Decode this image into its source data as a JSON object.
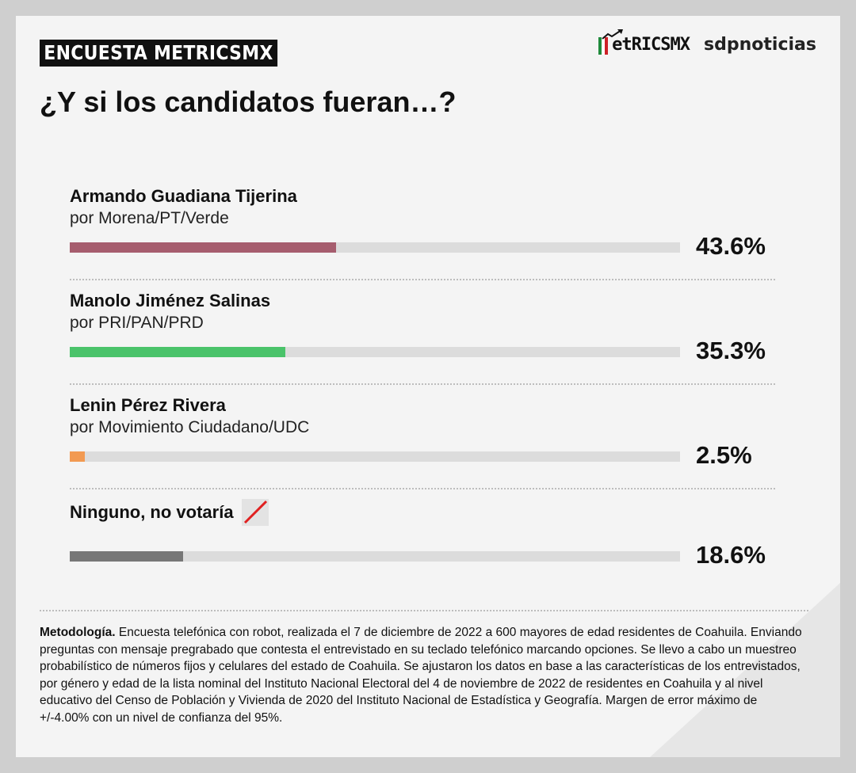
{
  "header": {
    "badge": "ENCUESTA METRICSMX",
    "title": "¿Y si los candidatos fueran…?",
    "logo_metrics": "etRICSMX",
    "logo_sdp": "sdpnoticias"
  },
  "chart_data": {
    "type": "bar",
    "title": "¿Y si los candidatos fueran…?",
    "xlim": [
      0,
      100
    ],
    "rows": [
      {
        "name": "Armando Guadiana Tijerina",
        "party": "por Morena/PT/Verde",
        "value": 43.6,
        "label": "43.6%",
        "color": "#a65d6e"
      },
      {
        "name": "Manolo Jiménez Salinas",
        "party": "por PRI/PAN/PRD",
        "value": 35.3,
        "label": "35.3%",
        "color": "#4ac36a"
      },
      {
        "name": "Lenin Pérez Rivera",
        "party": "por Movimiento Ciudadano/UDC",
        "value": 2.5,
        "label": "2.5%",
        "color": "#f29a52"
      },
      {
        "name": "Ninguno, no votaría",
        "party": "",
        "value": 18.6,
        "label": "18.6%",
        "color": "#777777"
      }
    ]
  },
  "methodology": {
    "label": "Metodología.",
    "text": " Encuesta telefónica con robot, realizada el 7 de diciembre de 2022 a 600 mayores de edad residentes de Coahuila. Enviando preguntas con mensaje pregrabado que contesta el entrevistado en su teclado telefónico marcando opciones. Se llevo a cabo un muestreo probabilístico de números fijos y celulares del estado de Coahuila. Se ajustaron los datos en base a las características de los entrevistados, por género y edad de la lista nominal del Instituto Nacional Electoral del 4 de noviembre de 2022 de residentes en Coahuila y al nivel educativo del Censo de Población y Vivienda de 2020 del Instituto Nacional de Estadística y Geografía. Margen de error máximo de +/-4.00% con un nivel de confianza del 95%."
  },
  "colors": {
    "flag_green": "#1f8a3b",
    "flag_white": "#ffffff",
    "flag_red": "#cc2127",
    "none_slash": "#e02020"
  }
}
